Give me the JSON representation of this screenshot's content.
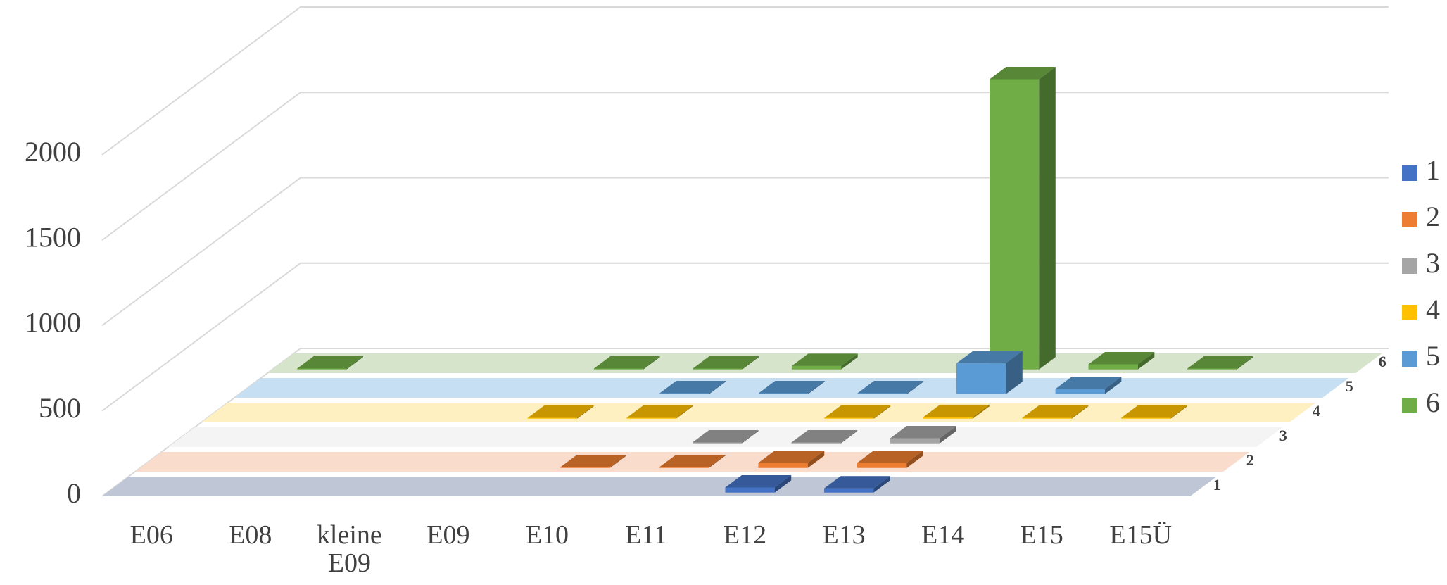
{
  "chart_data": {
    "type": "bar3d",
    "categories": [
      "E06",
      "E08",
      "kleine E09",
      "E09",
      "E10",
      "E11",
      "E12",
      "E13",
      "E14",
      "E15",
      "E15Ü"
    ],
    "series": [
      {
        "name": "1",
        "color": "#4472c4",
        "floor": "#bfc7d6",
        "values": [
          null,
          null,
          null,
          null,
          null,
          null,
          30,
          25,
          null,
          null,
          null
        ]
      },
      {
        "name": "2",
        "color": "#ed7d31",
        "floor": "#f9dccb",
        "values": [
          null,
          null,
          null,
          null,
          5,
          5,
          30,
          30,
          null,
          null,
          null
        ]
      },
      {
        "name": "3",
        "color": "#a5a5a5",
        "floor": "#f4f4f4",
        "values": [
          null,
          null,
          null,
          null,
          null,
          5,
          5,
          30,
          null,
          null,
          null
        ]
      },
      {
        "name": "4",
        "color": "#ffc000",
        "floor": "#fff0c2",
        "values": [
          null,
          null,
          null,
          5,
          5,
          null,
          5,
          10,
          5,
          5,
          null
        ]
      },
      {
        "name": "5",
        "color": "#5b9bd5",
        "floor": "#c6dff2",
        "values": [
          null,
          null,
          null,
          null,
          5,
          5,
          5,
          180,
          30,
          null,
          null
        ]
      },
      {
        "name": "6",
        "color": "#70ad47",
        "floor": "#d6e4cb",
        "values": [
          5,
          null,
          null,
          5,
          5,
          20,
          null,
          1700,
          30,
          5,
          null
        ]
      }
    ],
    "ylim": [
      0,
      2000
    ],
    "yticks": [
      0,
      500,
      1000,
      1500,
      2000
    ],
    "grid": true,
    "legend": "right"
  }
}
